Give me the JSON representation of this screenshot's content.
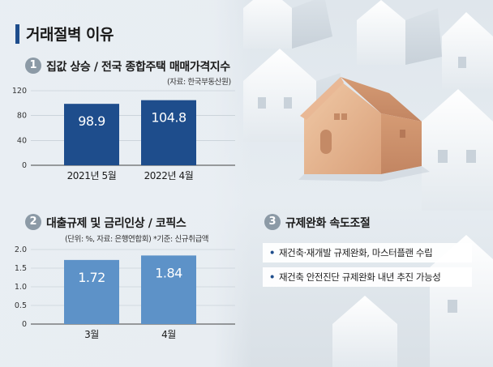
{
  "title": "거래절벽 이유",
  "sections": [
    {
      "number": "1",
      "title": "집값 상승 / 전국 종합주택 매매가격지수",
      "notes": [
        "(자료: 한국부동산원)"
      ]
    },
    {
      "number": "2",
      "title": "대출규제 및 금리인상 / 코픽스",
      "notes": [
        "(단위: %, 자료: 은행연합회) *기준: 신규취급액"
      ]
    },
    {
      "number": "3",
      "title": "규제완화 속도조절",
      "items": [
        "재건축·재개발 규제완화, 마스터플랜 수립",
        "재건축 안전진단 규제완화 내년 추진 가능성"
      ]
    }
  ],
  "chart_data": [
    {
      "type": "bar",
      "categories": [
        "2021년 5월",
        "2022년 4월"
      ],
      "values": [
        98.9,
        104.8
      ],
      "value_labels": [
        "98.9",
        "104.8"
      ],
      "yticks": [
        "0",
        "40",
        "80",
        "120"
      ],
      "ylim": [
        0,
        120
      ],
      "color": "#1e4d8c"
    },
    {
      "type": "bar",
      "categories": [
        "3월",
        "4월"
      ],
      "values": [
        1.72,
        1.84
      ],
      "value_labels": [
        "1.72",
        "1.84"
      ],
      "yticks": [
        "0",
        "0.5",
        "1.0",
        "1.5",
        "2.0"
      ],
      "ylim": [
        0,
        2.0
      ],
      "color": "#5d92c8"
    }
  ]
}
